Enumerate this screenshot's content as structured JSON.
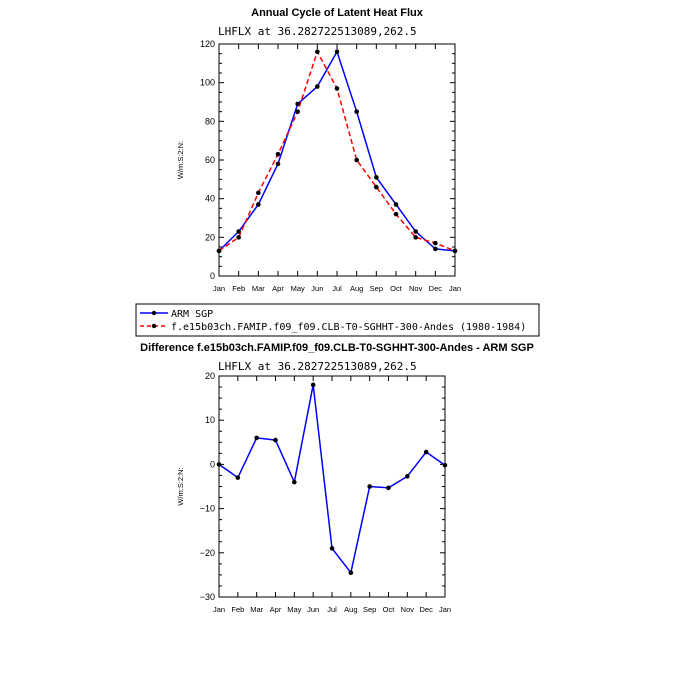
{
  "chart_data": [
    {
      "type": "line",
      "title": "Annual Cycle of Latent Heat Flux",
      "subtitle": "LHFLX at 36.282722513089,262.5",
      "ylabel": "W/m:S:2:N:",
      "xlabel": "",
      "categories": [
        "Jan",
        "Feb",
        "Mar",
        "Apr",
        "May",
        "Jun",
        "Jul",
        "Aug",
        "Sep",
        "Oct",
        "Nov",
        "Dec",
        "Jan"
      ],
      "ylim": [
        0,
        120
      ],
      "yticks": [
        0,
        20,
        40,
        60,
        80,
        100,
        120
      ],
      "series": [
        {
          "name": "ARM SGP",
          "color": "#0000ff",
          "dashed": false,
          "values": [
            13,
            23,
            37,
            58,
            89,
            98,
            116,
            85,
            51,
            37,
            23,
            14,
            13
          ]
        },
        {
          "name": "f.e15b03ch.FAMIP.f09_f09.CLB-T0-SGHHT-300-Andes (1980-1984)",
          "color": "#ff0000",
          "dashed": true,
          "values": [
            13,
            20,
            43,
            63,
            85,
            116,
            97,
            60,
            46,
            32,
            20,
            17,
            13
          ]
        }
      ],
      "legend": "below"
    },
    {
      "type": "line",
      "title": "Difference f.e15b03ch.FAMIP.f09_f09.CLB-T0-SGHHT-300-Andes - ARM SGP",
      "subtitle": "LHFLX at 36.282722513089,262.5",
      "ylabel": "W/m:S:2:N:",
      "xlabel": "",
      "categories": [
        "Jan",
        "Feb",
        "Mar",
        "Apr",
        "May",
        "Jun",
        "Jul",
        "Aug",
        "Sep",
        "Oct",
        "Nov",
        "Dec",
        "Jan"
      ],
      "ylim": [
        -30,
        20
      ],
      "yticks": [
        -30,
        -20,
        -10,
        0,
        10,
        20
      ],
      "series": [
        {
          "name": "Difference",
          "color": "#0000ff",
          "dashed": false,
          "values": [
            0,
            -3,
            6,
            5.5,
            -4,
            18,
            -19,
            -24.5,
            -5,
            -5.3,
            -2.7,
            2.8,
            -0.2
          ]
        }
      ]
    }
  ]
}
